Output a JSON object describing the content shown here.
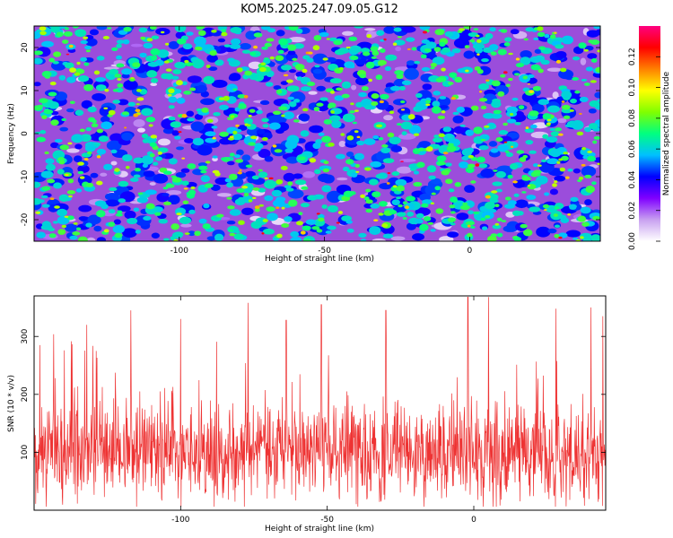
{
  "title": "KOM5.2025.247.09.05.G12",
  "chart_data": [
    {
      "type": "heatmap",
      "name": "spectrogram",
      "xlabel": "Height of straight line (km)",
      "ylabel": "Frequency (Hz)",
      "xlim": [
        -150,
        45
      ],
      "ylim": [
        -25,
        25
      ],
      "xticks": [
        -100,
        -50,
        0
      ],
      "yticks": [
        20,
        10,
        0,
        -10,
        -20
      ],
      "colorbar": {
        "label": "Normalized spectral amplitude",
        "range": [
          0,
          0.14
        ],
        "ticks": [
          "0.00",
          "0.02",
          "0.04",
          "0.06",
          "0.08",
          "0.10",
          "0.12"
        ],
        "colors": [
          "#ffffff",
          "#c8a0f0",
          "#8000ff",
          "#0000ff",
          "#00c0ff",
          "#00ff80",
          "#80ff00",
          "#ffff00",
          "#ff8000",
          "#ff0000",
          "#ff0080"
        ]
      },
      "grid": false
    },
    {
      "type": "line",
      "name": "snr",
      "xlabel": "Height of straight line (km)",
      "ylabel": "SNR (10 * v/v)",
      "xlim": [
        -150,
        45
      ],
      "ylim": [
        0,
        370
      ],
      "xticks": [
        -100,
        -50,
        0
      ],
      "yticks": [
        100,
        200,
        300
      ],
      "series": [
        {
          "name": "SNR",
          "color": "#ee3333",
          "mean": 100,
          "spread": 60,
          "peaks": [
            {
              "x": -148,
              "y": 285
            },
            {
              "x": -132,
              "y": 320
            },
            {
              "x": -117,
              "y": 345
            },
            {
              "x": -100,
              "y": 330
            },
            {
              "x": -77,
              "y": 358
            },
            {
              "x": -64,
              "y": 328
            },
            {
              "x": -52,
              "y": 355
            },
            {
              "x": -30,
              "y": 345
            },
            {
              "x": -2,
              "y": 368
            },
            {
              "x": 5,
              "y": 368
            },
            {
              "x": 28,
              "y": 348
            },
            {
              "x": 40,
              "y": 350
            },
            {
              "x": 44,
              "y": 335
            }
          ]
        }
      ],
      "grid": false
    }
  ]
}
